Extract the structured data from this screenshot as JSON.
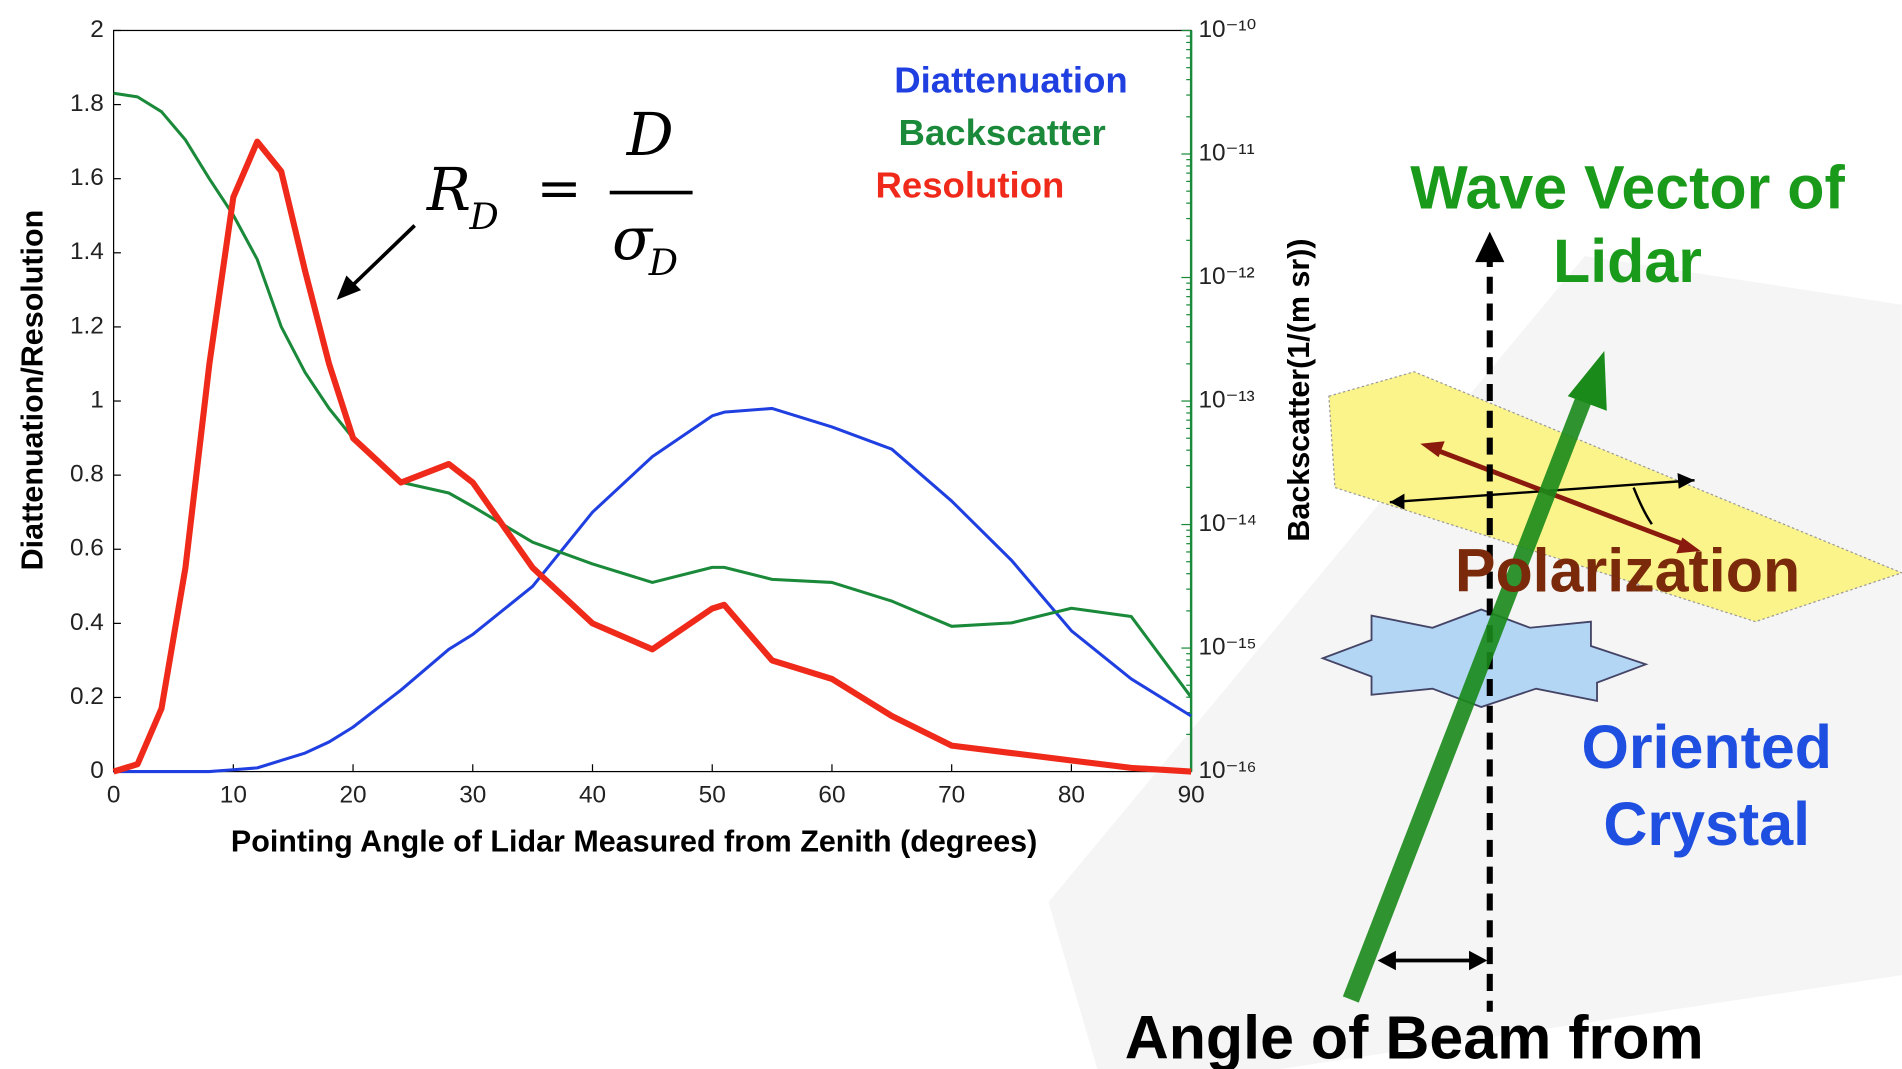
{
  "chart_data": {
    "type": "line",
    "x_label": "Pointing Angle of Lidar Measured from Zenith (degrees)",
    "y_label": "Diattenuation/Resolution",
    "y2_label": "Backscatter(1/(m sr))",
    "formula": {
      "lhs": "R",
      "lhs_sub": "D",
      "equals": "=",
      "numerator": "D",
      "denominator": "σ",
      "denominator_sub": "D"
    },
    "x": [
      0,
      2,
      4,
      6,
      8,
      10,
      12,
      14,
      16,
      18,
      20,
      24,
      28,
      30,
      35,
      40,
      45,
      50,
      51,
      55,
      60,
      65,
      70,
      75,
      80,
      85,
      90
    ],
    "series": [
      {
        "name": "Diattenuation",
        "color": "#1f3fe0",
        "values": [
          0,
          0,
          0,
          0,
          0,
          0.005,
          0.01,
          0.03,
          0.05,
          0.08,
          0.12,
          0.22,
          0.33,
          0.37,
          0.5,
          0.7,
          0.85,
          0.96,
          0.97,
          0.98,
          0.93,
          0.87,
          0.73,
          0.57,
          0.38,
          0.25,
          0.15
        ]
      },
      {
        "name": "Backscatter",
        "color": "#1a8a3a",
        "axis": "y2",
        "values": [
          3.1e-11,
          2.9e-11,
          2.2e-11,
          1.3e-11,
          6.3e-12,
          3.2e-12,
          1.4e-12,
          4e-13,
          1.7e-13,
          8.7e-14,
          5e-14,
          2.2e-14,
          1.8e-14,
          1.4e-14,
          7.2e-15,
          4.8e-15,
          3.4e-15,
          4.5e-15,
          4.5e-15,
          3.6e-15,
          3.4e-15,
          2.4e-15,
          1.5e-15,
          1.6e-15,
          2.1e-15,
          1.8e-15,
          4e-16
        ]
      },
      {
        "name": "Resolution",
        "color": "#f02a1a",
        "values": [
          0,
          0.02,
          0.17,
          0.55,
          1.1,
          1.55,
          1.7,
          1.62,
          1.35,
          1.1,
          0.9,
          0.78,
          0.83,
          0.78,
          0.55,
          0.4,
          0.33,
          0.44,
          0.45,
          0.3,
          0.25,
          0.15,
          0.07,
          0.05,
          0.03,
          0.01,
          0
        ]
      }
    ],
    "xlim": [
      0,
      90
    ],
    "xticks": [
      0,
      10,
      20,
      30,
      40,
      50,
      60,
      70,
      80,
      90
    ],
    "ylim": [
      0,
      2
    ],
    "yticks": [
      0,
      0.2,
      0.4,
      0.6,
      0.8,
      1,
      1.2,
      1.4,
      1.6,
      1.8,
      2
    ],
    "y2lim": [
      1e-16,
      1e-10
    ],
    "y2log": true,
    "y2ticks": [
      {
        "value": 1e-16,
        "label": "10⁻¹⁶"
      },
      {
        "value": 1e-15,
        "label": "10⁻¹⁵"
      },
      {
        "value": 1e-14,
        "label": "10⁻¹⁴"
      },
      {
        "value": 1e-13,
        "label": "10⁻¹³"
      },
      {
        "value": 1e-12,
        "label": "10⁻¹²"
      },
      {
        "value": 1e-11,
        "label": "10⁻¹¹"
      },
      {
        "value": 1e-10,
        "label": "10⁻¹⁰"
      }
    ],
    "y2_color": "#1a8a3a",
    "grid": false
  },
  "diagram": {
    "wave_vector": [
      "Wave Vector of",
      "Lidar"
    ],
    "polarization": "Polarization",
    "crystal": [
      "Oriented",
      "Crystal"
    ],
    "angle": "Angle of Beam from"
  }
}
